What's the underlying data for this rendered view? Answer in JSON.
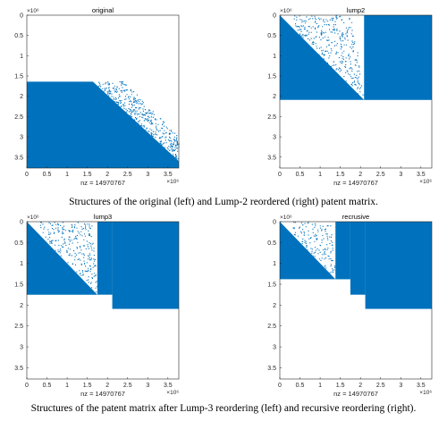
{
  "figure": {
    "captions": [
      "Structures of the original (left) and Lump-2 reordered (right) patent matrix.",
      "Structures of the patent matrix after Lump-3 reordering (left) and recursive reordering (right)."
    ]
  },
  "chart_data": [
    {
      "type": "spy",
      "title": "original",
      "xlabel": "nz = 14970767",
      "x_multiplier": "×10⁶",
      "y_multiplier": "×10⁶",
      "xlim": [
        0,
        3.77
      ],
      "ylim": [
        0,
        3.77
      ],
      "x_ticks": [
        "0",
        "0.5",
        "1",
        "1.5",
        "2",
        "2.5",
        "3",
        "3.5"
      ],
      "y_ticks": [
        "0",
        "0.5",
        "1",
        "1.5",
        "2",
        "2.5",
        "3",
        "3.5"
      ],
      "color": "#0072bd",
      "blocks": [
        {
          "shape": "poly",
          "points": [
            [
              0,
              1.64
            ],
            [
              1.64,
              1.64
            ],
            [
              3.77,
              3.6
            ],
            [
              3.77,
              3.77
            ],
            [
              0,
              3.77
            ]
          ]
        }
      ],
      "scatter_regions": [
        {
          "poly": [
            [
              1.64,
              1.64
            ],
            [
              2.4,
              1.62
            ],
            [
              3.77,
              3.0
            ],
            [
              3.77,
              3.6
            ]
          ],
          "density": 0.35
        }
      ]
    },
    {
      "type": "spy",
      "title": "lump2",
      "xlabel": "nz = 14970767",
      "x_multiplier": "×10⁶",
      "y_multiplier": "×10⁶",
      "xlim": [
        0,
        3.77
      ],
      "ylim": [
        0,
        3.77
      ],
      "x_ticks": [
        "0",
        "0.5",
        "1",
        "1.5",
        "2",
        "2.5",
        "3",
        "3.5"
      ],
      "y_ticks": [
        "0",
        "0.5",
        "1",
        "1.5",
        "2",
        "2.5",
        "3",
        "3.5"
      ],
      "color": "#0072bd",
      "blocks": [
        {
          "shape": "poly",
          "points": [
            [
              0,
              0
            ],
            [
              0,
              2.09
            ],
            [
              2.09,
              2.09
            ]
          ]
        },
        {
          "shape": "rect",
          "x": [
            2.09,
            3.77
          ],
          "y": [
            0,
            2.09
          ]
        }
      ],
      "scatter_regions": [
        {
          "poly": [
            [
              0.3,
              0
            ],
            [
              1.8,
              0
            ],
            [
              2.09,
              1.9
            ],
            [
              2.09,
              2.09
            ],
            [
              0.4,
              0.4
            ]
          ],
          "density": 0.18
        }
      ]
    },
    {
      "type": "spy",
      "title": "lump3",
      "xlabel": "nz = 14970767",
      "x_multiplier": "×10⁶",
      "y_multiplier": "×10⁶",
      "xlim": [
        0,
        3.77
      ],
      "ylim": [
        0,
        3.77
      ],
      "x_ticks": [
        "0",
        "0.5",
        "1",
        "1.5",
        "2",
        "2.5",
        "3",
        "3.5"
      ],
      "y_ticks": [
        "0",
        "0.5",
        "1",
        "1.5",
        "2",
        "2.5",
        "3",
        "3.5"
      ],
      "color": "#0072bd",
      "blocks": [
        {
          "shape": "poly",
          "points": [
            [
              0,
              0
            ],
            [
              0,
              1.75
            ],
            [
              1.75,
              1.75
            ]
          ]
        },
        {
          "shape": "rect",
          "x": [
            1.75,
            2.12
          ],
          "y": [
            0,
            1.75
          ]
        },
        {
          "shape": "rect",
          "x": [
            2.12,
            3.77
          ],
          "y": [
            0,
            2.09
          ]
        }
      ],
      "scatter_regions": [
        {
          "poly": [
            [
              0.3,
              0
            ],
            [
              1.6,
              0
            ],
            [
              1.75,
              1.6
            ],
            [
              1.75,
              1.75
            ],
            [
              0.4,
              0.4
            ]
          ],
          "density": 0.18
        }
      ]
    },
    {
      "type": "spy",
      "title": "recrusive",
      "xlabel": "nz = 14970767",
      "x_multiplier": "×10⁶",
      "y_multiplier": "×10⁶",
      "xlim": [
        0,
        3.77
      ],
      "ylim": [
        0,
        3.77
      ],
      "x_ticks": [
        "0",
        "0.5",
        "1",
        "1.5",
        "2",
        "2.5",
        "3",
        "3.5"
      ],
      "y_ticks": [
        "0",
        "0.5",
        "1",
        "1.5",
        "2",
        "2.5",
        "3",
        "3.5"
      ],
      "color": "#0072bd",
      "blocks": [
        {
          "shape": "poly",
          "points": [
            [
              0,
              0
            ],
            [
              0,
              1.38
            ],
            [
              1.38,
              1.38
            ]
          ]
        },
        {
          "shape": "rect",
          "x": [
            1.38,
            1.75
          ],
          "y": [
            0,
            1.38
          ]
        },
        {
          "shape": "rect",
          "x": [
            1.75,
            2.12
          ],
          "y": [
            0,
            1.75
          ]
        },
        {
          "shape": "rect",
          "x": [
            2.12,
            3.77
          ],
          "y": [
            0,
            2.09
          ]
        }
      ],
      "scatter_regions": [
        {
          "poly": [
            [
              0.25,
              0
            ],
            [
              1.25,
              0
            ],
            [
              1.38,
              1.25
            ],
            [
              1.38,
              1.38
            ],
            [
              0.35,
              0.35
            ]
          ],
          "density": 0.18
        }
      ]
    }
  ]
}
